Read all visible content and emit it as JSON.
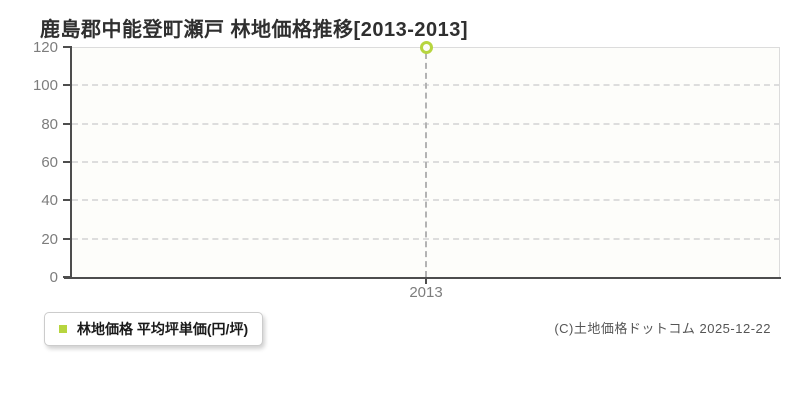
{
  "title": "鹿島郡中能登町瀬戸  林地価格推移[2013-2013]",
  "legend": {
    "label": "林地価格  平均坪単価(円/坪)",
    "swatch_color": "#b7d53f"
  },
  "footer": {
    "copyright": "(C)土地価格ドットコム 2025-12-22"
  },
  "colors": {
    "marker": "#b7d53f",
    "axis": "#4d4d4d",
    "grid": "#dddddd",
    "drop_line": "#b3b3b3",
    "tick_label": "#7d7d7d",
    "plot_background": "#fdfdfa"
  },
  "chart_data": {
    "type": "scatter",
    "title": "鹿島郡中能登町瀬戸 林地価格推移[2013-2013]",
    "x": [
      "2013"
    ],
    "series": [
      {
        "name": "林地価格 平均坪単価(円/坪)",
        "values": [
          120
        ]
      }
    ],
    "xlabel": "",
    "ylabel": "",
    "ylim": [
      0,
      120
    ],
    "ytick_step": 20,
    "yticks": [
      0,
      20,
      40,
      60,
      80,
      100,
      120
    ],
    "grid": "horizontal-dashed",
    "legend_position": "bottom-left",
    "marker": "hollow-circle",
    "marker_color": "#b7d53f",
    "annotations": "dashed vertical drop line from point to x-axis"
  }
}
